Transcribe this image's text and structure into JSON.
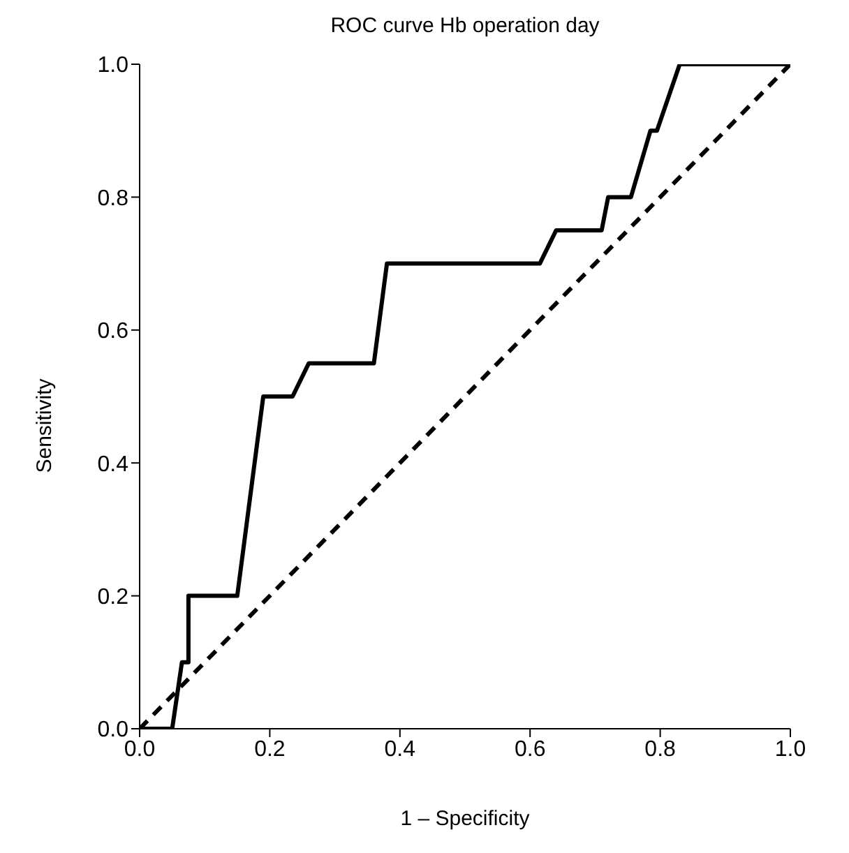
{
  "chart_data": {
    "type": "line",
    "title": "ROC curve Hb operation day",
    "xlabel": "1 – Specificity",
    "ylabel": "Sensitivity",
    "xlim": [
      0,
      1
    ],
    "ylim": [
      0,
      1
    ],
    "xticks": [
      {
        "value": 0,
        "label": "0.0"
      },
      0.2,
      0.4,
      0.6,
      0.8,
      {
        "value": 1,
        "label": "1.0"
      }
    ],
    "yticks": [
      {
        "value": 0,
        "label": "0.0"
      },
      0.2,
      0.4,
      0.6,
      0.8,
      {
        "value": 1,
        "label": "1.0"
      }
    ],
    "grid": false,
    "legend": false,
    "marker": "none",
    "series": [
      {
        "color": "#000000",
        "line_style": "solid",
        "x": [
          0,
          0.05,
          0.065,
          0.075,
          0.075,
          0.15,
          0.19,
          0.235,
          0.26,
          0.36,
          0.38,
          0.615,
          0.64,
          0.71,
          0.72,
          0.755,
          0.785,
          0.795,
          0.83,
          1
        ],
        "values": [
          0,
          0,
          0.1,
          0.1,
          0.2,
          0.2,
          0.5,
          0.5,
          0.55,
          0.55,
          0.7,
          0.7,
          0.75,
          0.75,
          0.8,
          0.8,
          0.9,
          0.9,
          1,
          1
        ]
      },
      {
        "color": "#000000",
        "line_style": "dashed",
        "x": [
          0,
          1
        ],
        "values": [
          0,
          1
        ]
      }
    ]
  }
}
